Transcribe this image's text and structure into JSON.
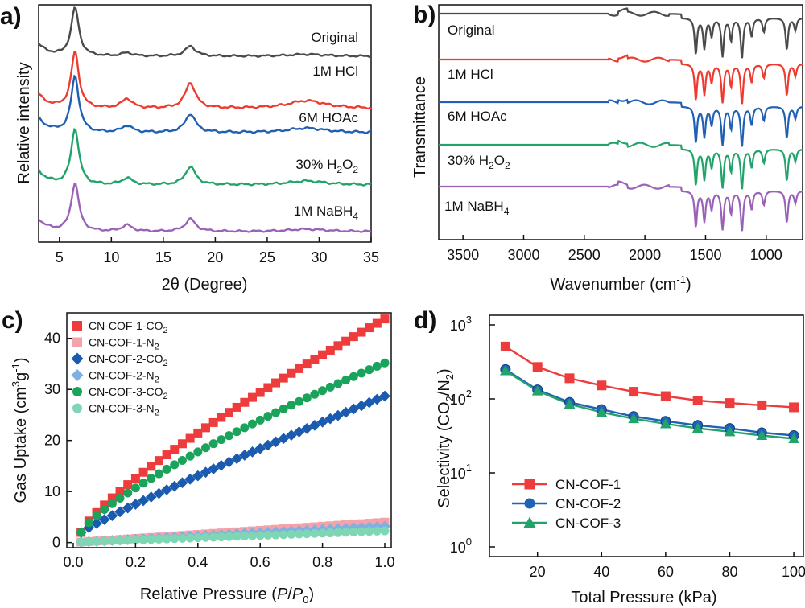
{
  "chart_data": [
    {
      "panel": "a)",
      "type": "line",
      "xlabel": "2θ (Degree)",
      "ylabel": "Relative intensity",
      "xlim": [
        3,
        35
      ],
      "xticks": [
        5,
        10,
        15,
        20,
        25,
        30,
        35
      ],
      "peaks_deg": [
        6.5,
        11.5,
        17.6,
        28.8
      ],
      "series": [
        {
          "name": "Original",
          "label": "Original",
          "color": "#4a4a4a",
          "peak_heights": [
            1.0,
            0.07,
            0.21,
            0.04
          ]
        },
        {
          "name": "1M HCl",
          "label": "1M HCl",
          "color": "#ee3b2f",
          "peak_heights": [
            1.0,
            0.17,
            0.45,
            0.14
          ]
        },
        {
          "name": "6M HOAc",
          "label": "6M HOAc",
          "color": "#1f5fb4",
          "peak_heights": [
            1.0,
            0.12,
            0.33,
            0.08
          ]
        },
        {
          "name": "30% H2O2",
          "label": "30% H",
          "sub1": "2",
          "mid": "O",
          "sub2": "2",
          "color": "#21a36a",
          "peak_heights": [
            1.0,
            0.12,
            0.32,
            0.07
          ]
        },
        {
          "name": "1M NaBH4",
          "label": "1M NaBH",
          "sub1": "4",
          "color": "#9a62b6",
          "peak_heights": [
            1.0,
            0.13,
            0.26,
            0.05
          ]
        }
      ]
    },
    {
      "panel": "b)",
      "type": "line",
      "xlabel": "Wavenumber (cm",
      "xlabel_sup": "-1",
      "xlabel_end": ")",
      "ylabel": "Transmittance",
      "xlim": [
        3700,
        700
      ],
      "xticks": [
        3500,
        3000,
        2500,
        2000,
        1500,
        1000
      ],
      "bands_cm1": [
        1580,
        1510,
        1450,
        1360,
        1290,
        1200,
        1120,
        1020,
        830,
        760
      ],
      "band_depths": [
        0.9,
        0.75,
        0.45,
        0.95,
        0.55,
        1.0,
        0.45,
        0.35,
        0.8,
        0.3
      ],
      "series": [
        {
          "name": "Original",
          "label": "Original",
          "color": "#4a4a4a"
        },
        {
          "name": "1M HCl",
          "label": "1M HCl",
          "color": "#ee3b2f"
        },
        {
          "name": "6M HOAc",
          "label": "6M HOAc",
          "color": "#1f5fb4"
        },
        {
          "name": "30% H2O2",
          "label": "30% H",
          "sub1": "2",
          "mid": "O",
          "sub2": "2",
          "color": "#21a36a"
        },
        {
          "name": "1M NaBH4",
          "label": "1M NaBH",
          "sub1": "4",
          "color": "#9a62b6"
        }
      ]
    },
    {
      "panel": "c)",
      "type": "scatter",
      "xlabel": "Relative Pressure (",
      "xlabel_it1": "P",
      "xlabel_slash": "/",
      "xlabel_it2": "P",
      "xlabel_sub": "0",
      "xlabel_end": ")",
      "ylabel": "Gas Uptake (cm",
      "ylabel_sup1": "3",
      "ylabel_mid": "g",
      "ylabel_sup2": "-1",
      "ylabel_end": ")",
      "xlim": [
        0.0,
        1.0
      ],
      "ylim": [
        -1,
        45
      ],
      "xticks": [
        0.0,
        0.2,
        0.4,
        0.6,
        0.8,
        1.0
      ],
      "yticks": [
        0,
        10,
        20,
        30,
        40
      ],
      "n_points": 40,
      "x_start": 0.025,
      "x_end": 1.0,
      "series": [
        {
          "name": "CN-COF-1-CO2",
          "label": "CN-COF-1-CO",
          "sub": "2",
          "marker": "square",
          "color": "#ee3b3b",
          "y_start": 2.0,
          "y_end": 43.8,
          "exponent": 0.8
        },
        {
          "name": "CN-COF-1-N2",
          "label": "CN-COF-1-N",
          "sub": "2",
          "marker": "square",
          "color": "#f4a3a8",
          "y_start": 0.1,
          "y_end": 4.0,
          "exponent": 1.0
        },
        {
          "name": "CN-COF-2-CO2",
          "label": "CN-COF-2-CO",
          "sub": "2",
          "marker": "diamond",
          "color": "#1a5bb0",
          "y_start": 2.0,
          "y_end": 28.7,
          "exponent": 0.92
        },
        {
          "name": "CN-COF-2-N2",
          "label": "CN-COF-2-N",
          "sub": "2",
          "marker": "diamond",
          "color": "#7fb0e3",
          "y_start": 0.1,
          "y_end": 3.2,
          "exponent": 1.0
        },
        {
          "name": "CN-COF-3-CO2",
          "label": "CN-COF-3-CO",
          "sub": "2",
          "marker": "circle",
          "color": "#1aa35a",
          "y_start": 2.0,
          "y_end": 35.2,
          "exponent": 0.78
        },
        {
          "name": "CN-COF-3-N2",
          "label": "CN-COF-3-N",
          "sub": "2",
          "marker": "circle",
          "color": "#7fd6b4",
          "y_start": 0.1,
          "y_end": 2.3,
          "exponent": 1.0
        }
      ]
    },
    {
      "panel": "d)",
      "type": "line",
      "xlabel": "Total Pressure (kPa)",
      "ylabel": "Selectivity (CO",
      "ylabel_sub1": "2",
      "ylabel_mid": "/N",
      "ylabel_sub2": "2",
      "ylabel_end": ")",
      "yscale": "log",
      "xlim": [
        5,
        103
      ],
      "ylim": [
        1,
        1000
      ],
      "xticks": [
        20,
        40,
        60,
        80,
        100
      ],
      "yticks": [
        {
          "base": "10",
          "exp": "0",
          "value": 1
        },
        {
          "base": "10",
          "exp": "1",
          "value": 10
        },
        {
          "base": "10",
          "exp": "2",
          "value": 100
        },
        {
          "base": "10",
          "exp": "3",
          "value": 1000
        }
      ],
      "x": [
        10,
        20,
        30,
        40,
        50,
        60,
        70,
        80,
        90,
        100
      ],
      "legend_position": "bottom-left",
      "series": [
        {
          "name": "CN-COF-1",
          "marker": "square",
          "color": "#ee3b3b",
          "values": [
            510,
            270,
            190,
            152,
            125,
            109,
            95,
            88,
            82,
            77
          ]
        },
        {
          "name": "CN-COF-2",
          "marker": "circle",
          "color": "#1f63b8",
          "values": [
            250,
            133,
            90,
            72,
            58,
            50,
            44,
            40,
            35,
            32
          ]
        },
        {
          "name": "CN-COF-3",
          "marker": "triangle",
          "color": "#22a36a",
          "values": [
            240,
            128,
            85,
            66,
            54,
            46,
            40,
            36,
            32,
            29
          ]
        }
      ]
    }
  ]
}
